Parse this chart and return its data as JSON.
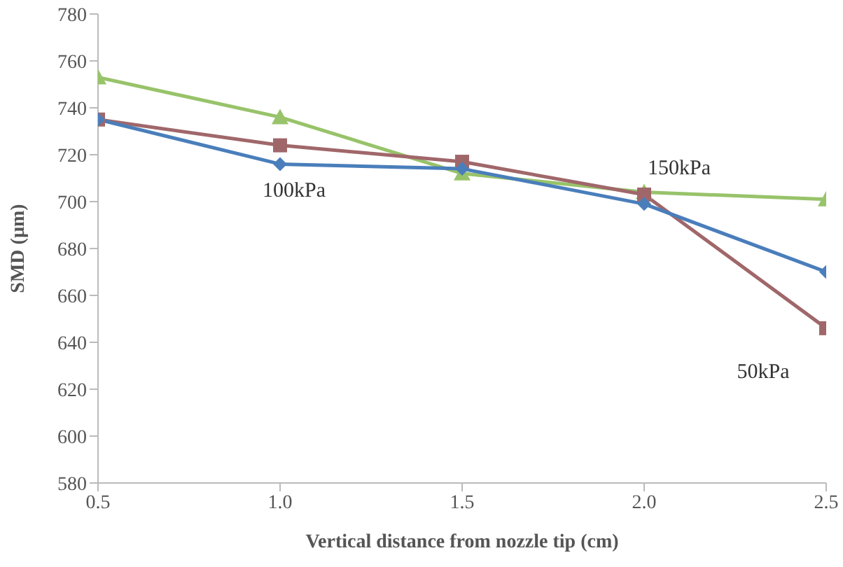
{
  "chart_data": {
    "type": "line",
    "xlabel": "Vertical distance from nozzle tip (cm)",
    "ylabel": "SMD (µm)",
    "x": [
      0.5,
      1.0,
      1.5,
      2.0,
      2.5
    ],
    "xlim": [
      0.5,
      2.5
    ],
    "xticks": [
      {
        "value": 0.5,
        "label": "0.5"
      },
      {
        "value": 1.0,
        "label": "1.0"
      },
      {
        "value": 1.5,
        "label": "1.5"
      },
      {
        "value": 2.0,
        "label": "2.0"
      },
      {
        "value": 2.5,
        "label": "2.5"
      }
    ],
    "ylim": [
      580,
      780
    ],
    "yticks": [
      580,
      600,
      620,
      640,
      660,
      680,
      700,
      720,
      740,
      760,
      780
    ],
    "grid": false,
    "legend": false,
    "series": [
      {
        "name": "100kPa",
        "color": "#4a7ebb",
        "marker": "diamond",
        "values": [
          735,
          716,
          714,
          699,
          670
        ]
      },
      {
        "name": "50kPa",
        "color": "#a0676a",
        "marker": "square",
        "values": [
          735,
          724,
          717,
          703,
          646
        ]
      },
      {
        "name": "150kPa",
        "color": "#98c36a",
        "marker": "triangle",
        "values": [
          753,
          736,
          712,
          704,
          701
        ]
      }
    ]
  }
}
